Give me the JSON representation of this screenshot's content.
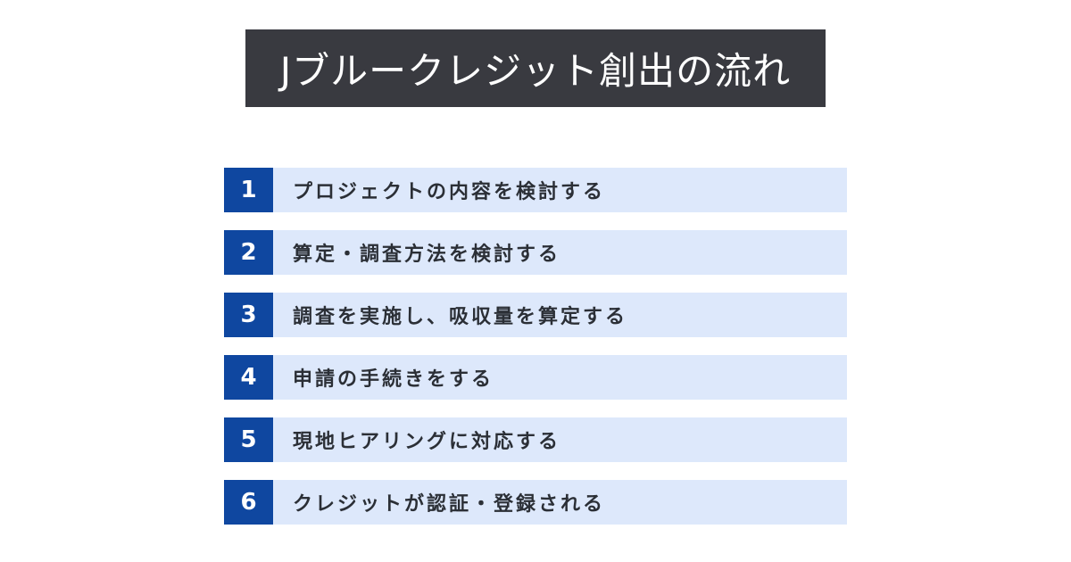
{
  "title": "Jブルークレジット創出の流れ",
  "colors": {
    "title_bg": "#393a40",
    "number_bg": "#0f47a0",
    "row_bg": "#dde8fb",
    "text": "#2b2f36"
  },
  "steps": [
    {
      "number": "1",
      "label": "プロジェクトの内容を検討する"
    },
    {
      "number": "2",
      "label": "算定・調査方法を検討する"
    },
    {
      "number": "3",
      "label": "調査を実施し、吸収量を算定する"
    },
    {
      "number": "4",
      "label": "申請の手続きをする"
    },
    {
      "number": "5",
      "label": "現地ヒアリングに対応する"
    },
    {
      "number": "6",
      "label": "クレジットが認証・登録される"
    }
  ]
}
